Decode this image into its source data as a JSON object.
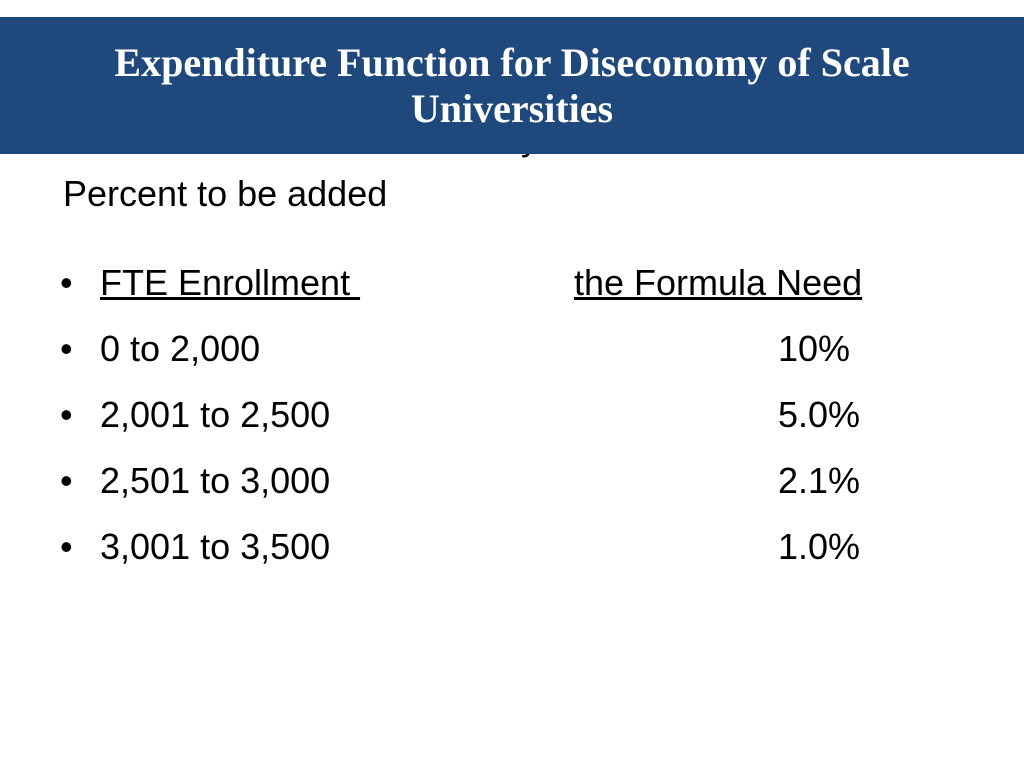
{
  "slide": {
    "title": "Expenditure Function for Diseconomy of Scale Universities",
    "hidden_fragment": "y",
    "subheading": "Percent to be added",
    "table": {
      "bullet": "•",
      "headers": {
        "enrollment": "FTE Enrollment ",
        "need": "the Formula Need"
      },
      "rows": [
        {
          "enrollment": "0 to 2,000",
          "percent": "10%"
        },
        {
          "enrollment": "2,001 to 2,500",
          "percent": "5.0%"
        },
        {
          "enrollment": "2,501 to 3,000",
          "percent": "2.1%"
        },
        {
          "enrollment": "3,001 to 3,500",
          "percent": "1.0%"
        }
      ]
    }
  },
  "colors": {
    "title_bar": "#1f497d",
    "title_text": "#ffffff",
    "body_text": "#000000",
    "background": "#ffffff"
  }
}
